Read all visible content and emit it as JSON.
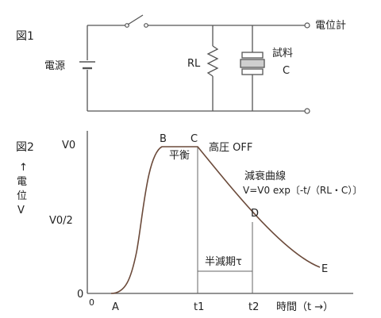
{
  "figure1": {
    "title": "図1",
    "power_source_label": "電源",
    "resistor_label": "RL",
    "sample_label": "試料",
    "capacitor_label": "C",
    "meter_label": "電位計"
  },
  "figure2": {
    "title": "図2",
    "y_axis_label": [
      "↑",
      "電",
      "位",
      "V"
    ],
    "y_ticks": [
      "V0",
      "V0/2",
      "0"
    ],
    "x_ticks": [
      "0",
      "A",
      "t1",
      "t2"
    ],
    "x_axis_label": "時間（t →）",
    "point_labels": [
      "B",
      "C",
      "D",
      "E"
    ],
    "balance_label": "平衡",
    "hv_off_label": "高圧 OFF",
    "decay_curve_title": "減衰曲線",
    "decay_formula": "V=V0 exp〔-t/（RL・C）〕",
    "half_life_label": "半減期τ"
  }
}
